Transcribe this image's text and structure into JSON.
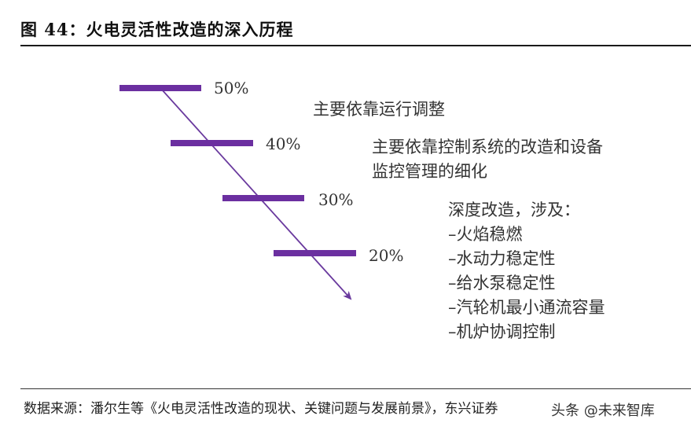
{
  "figure": {
    "title": "图 44：火电灵活性改造的深入历程"
  },
  "levels": [
    {
      "label": "50%",
      "note_lines": [
        "主要依靠运行调整"
      ]
    },
    {
      "label": "40%",
      "note_lines": [
        "主要依靠控制系统的改造和设备",
        "监控管理的细化"
      ]
    },
    {
      "label": "30%",
      "note_lines": [
        "深度改造，涉及：",
        "–火焰稳燃",
        "–水动力稳定性",
        "–给水泵稳定性",
        "–汽轮机最小通流容量",
        "–机炉协调控制"
      ]
    },
    {
      "label": "20%",
      "note_lines": []
    }
  ],
  "colors": {
    "bar": "#6b2fa0",
    "arrow": "#6a3a9e"
  },
  "source": "数据来源：潘尔生等《火电灵活性改造的现状、关键问题与发展前景》，东兴证券",
  "watermark": {
    "icon": "head-icon",
    "text": "头条 @未来智库"
  }
}
